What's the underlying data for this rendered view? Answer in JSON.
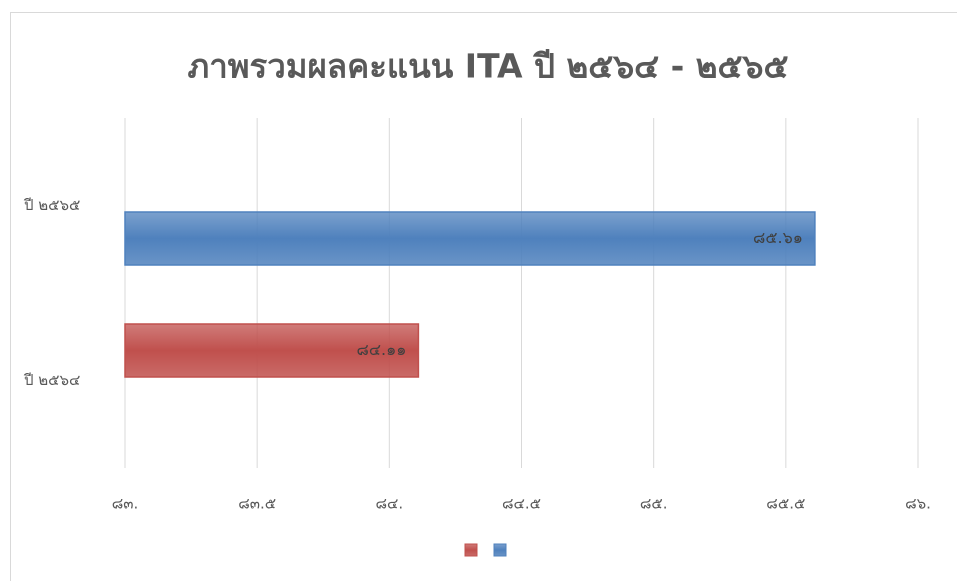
{
  "chart_data": {
    "type": "barh",
    "title": "ภาพรวมผลคะแนน ITA ปี ๒๕๖๔ - ๒๕๖๕",
    "categories": [
      "ปี ๒๕๖๔",
      "ปี ๒๕๖๕"
    ],
    "series": [
      {
        "color": "#c0504d",
        "values": [
          84.11,
          null
        ],
        "value_labels": [
          "๘๔.๑๑",
          null
        ]
      },
      {
        "color": "#4f81bd",
        "values": [
          null,
          85.61
        ],
        "value_labels": [
          null,
          "๘๕.๖๑"
        ]
      }
    ],
    "xlim": [
      83,
      86
    ],
    "xticks": [
      {
        "value": 83,
        "label": "๘๓."
      },
      {
        "value": 83.5,
        "label": "๘๓.๕"
      },
      {
        "value": 84,
        "label": "๘๔."
      },
      {
        "value": 84.5,
        "label": "๘๔.๕"
      },
      {
        "value": 85,
        "label": "๘๕."
      },
      {
        "value": 85.5,
        "label": "๘๕.๕"
      },
      {
        "value": 86,
        "label": "๘๖."
      }
    ],
    "grid": true,
    "legend": "bottom"
  }
}
